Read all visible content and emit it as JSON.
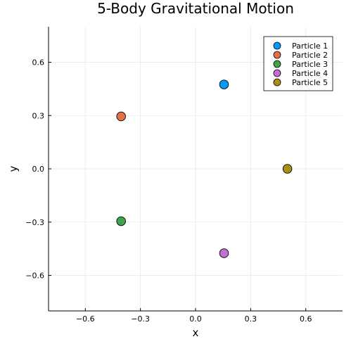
{
  "chart_data": {
    "type": "scatter",
    "title": "5-Body Gravitational Motion",
    "xlabel": "x",
    "ylabel": "y",
    "xlim": [
      -0.8,
      0.8
    ],
    "ylim": [
      -0.8,
      0.8
    ],
    "x_ticks": [
      -0.6,
      -0.3,
      0.0,
      0.3,
      0.6
    ],
    "y_ticks": [
      -0.6,
      -0.3,
      0.0,
      0.3,
      0.6
    ],
    "x_tick_labels": [
      "−0.6",
      "−0.3",
      "0.0",
      "0.3",
      "0.6"
    ],
    "y_tick_labels": [
      "−0.6",
      "−0.3",
      "0.0",
      "0.3",
      "0.6"
    ],
    "grid": true,
    "legend_position": "top-right",
    "series": [
      {
        "name": "Particle 1",
        "color": "#009af9",
        "x": [
          0.155
        ],
        "y": [
          0.475
        ]
      },
      {
        "name": "Particle 2",
        "color": "#e26f46",
        "x": [
          -0.405
        ],
        "y": [
          0.295
        ]
      },
      {
        "name": "Particle 3",
        "color": "#3da44d",
        "x": [
          -0.405
        ],
        "y": [
          -0.295
        ]
      },
      {
        "name": "Particle 4",
        "color": "#c271d2",
        "x": [
          0.155
        ],
        "y": [
          -0.475
        ]
      },
      {
        "name": "Particle 5",
        "color": "#ac8d18",
        "x": [
          0.5
        ],
        "y": [
          0.0
        ]
      }
    ]
  }
}
